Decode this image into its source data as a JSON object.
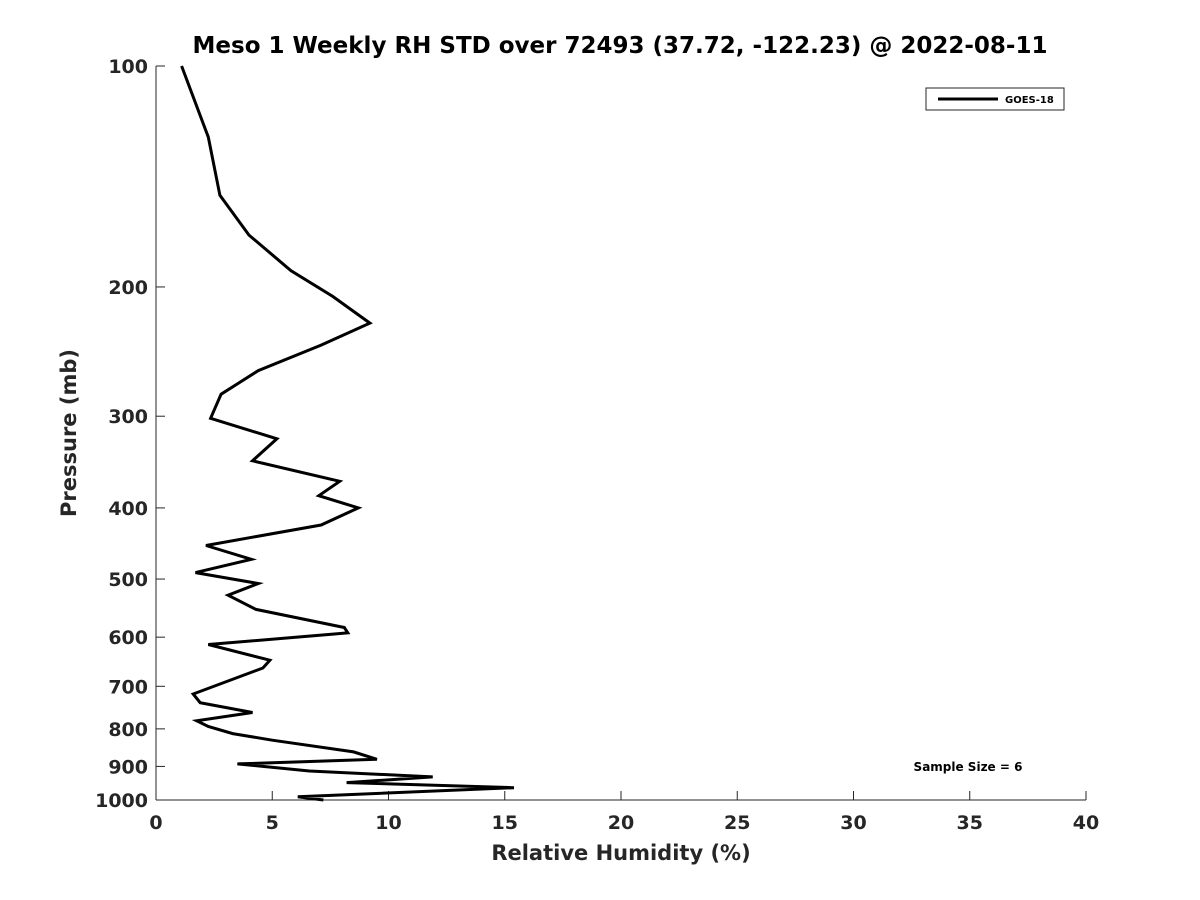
{
  "chart_data": {
    "type": "line",
    "title": "Meso 1 Weekly RH STD over 72493 (37.72, -122.23) @ 2022-08-11",
    "xlabel": "Relative Humidity (%)",
    "ylabel": "Pressure (mb)",
    "xlim": [
      0,
      40
    ],
    "ylim": [
      100,
      1000
    ],
    "y_scale": "log",
    "y_reversed": true,
    "x_ticks": [
      0,
      5,
      10,
      15,
      20,
      25,
      30,
      35,
      40
    ],
    "x_tick_labels": [
      "0",
      "5",
      "10",
      "15",
      "20",
      "25",
      "30",
      "35",
      "40"
    ],
    "y_ticks": [
      100,
      200,
      300,
      400,
      500,
      600,
      700,
      800,
      900,
      1000
    ],
    "y_tick_labels": [
      "100",
      "200",
      "300",
      "400",
      "500",
      "600",
      "700",
      "800",
      "900",
      "1000"
    ],
    "grid": false,
    "legend_position": "top-right",
    "annotation": "Sample Size = 6",
    "series": [
      {
        "name": "GOES-18",
        "color": "#000000",
        "points": [
          [
            1.1,
            100
          ],
          [
            2.25,
            125
          ],
          [
            2.75,
            150
          ],
          [
            4.0,
            170
          ],
          [
            5.8,
            190
          ],
          [
            7.6,
            206
          ],
          [
            9.2,
            224
          ],
          [
            7.1,
            240
          ],
          [
            4.4,
            260
          ],
          [
            2.8,
            280
          ],
          [
            2.35,
            302
          ],
          [
            5.2,
            322
          ],
          [
            4.15,
            345
          ],
          [
            7.9,
            368
          ],
          [
            7.0,
            385
          ],
          [
            8.7,
            400
          ],
          [
            7.1,
            422
          ],
          [
            2.15,
            450
          ],
          [
            4.1,
            470
          ],
          [
            1.7,
            490
          ],
          [
            4.4,
            507
          ],
          [
            3.1,
            526
          ],
          [
            4.3,
            550
          ],
          [
            8.1,
            582
          ],
          [
            8.25,
            592
          ],
          [
            2.25,
            614
          ],
          [
            4.9,
            645
          ],
          [
            4.6,
            661
          ],
          [
            1.6,
            717
          ],
          [
            1.9,
            737
          ],
          [
            4.15,
            760
          ],
          [
            1.75,
            780
          ],
          [
            2.25,
            794
          ],
          [
            3.3,
            812
          ],
          [
            5.0,
            829
          ],
          [
            8.5,
            860
          ],
          [
            9.5,
            880
          ],
          [
            3.5,
            893
          ],
          [
            6.6,
            913
          ],
          [
            11.9,
            930
          ],
          [
            8.2,
            947
          ],
          [
            15.4,
            962
          ],
          [
            6.1,
            990
          ],
          [
            7.2,
            1000
          ]
        ]
      }
    ]
  }
}
